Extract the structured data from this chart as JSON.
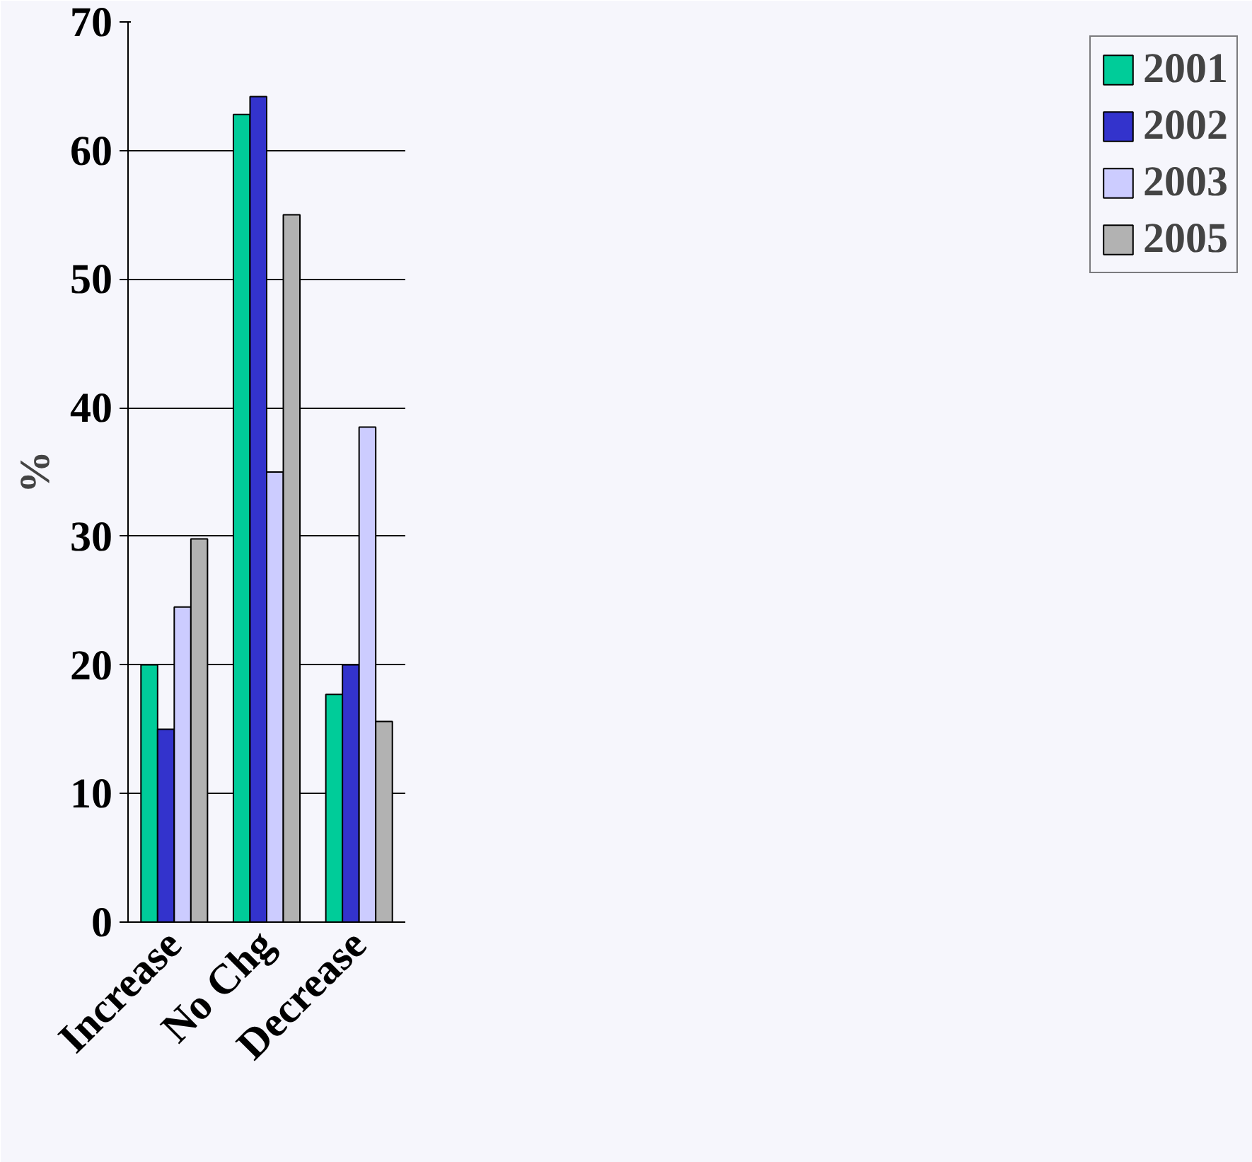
{
  "chart_data": {
    "type": "bar",
    "ylabel": "%",
    "categories": [
      "Increase",
      "No Chg",
      "Decrease"
    ],
    "series": [
      {
        "name": "2001",
        "color": "#00cc99",
        "values": [
          20,
          62.8,
          17.7
        ]
      },
      {
        "name": "2002",
        "color": "#3333cc",
        "values": [
          15,
          64.2,
          20
        ]
      },
      {
        "name": "2003",
        "color": "#ccccff",
        "values": [
          24.5,
          35,
          38.5
        ]
      },
      {
        "name": "2005",
        "color": "#b2b2b2",
        "values": [
          29.8,
          55,
          15.6
        ]
      }
    ],
    "ylim": [
      0,
      70
    ],
    "yticks": [
      0,
      10,
      20,
      30,
      40,
      50,
      60,
      70
    ],
    "grid": "y",
    "legend": "right"
  }
}
